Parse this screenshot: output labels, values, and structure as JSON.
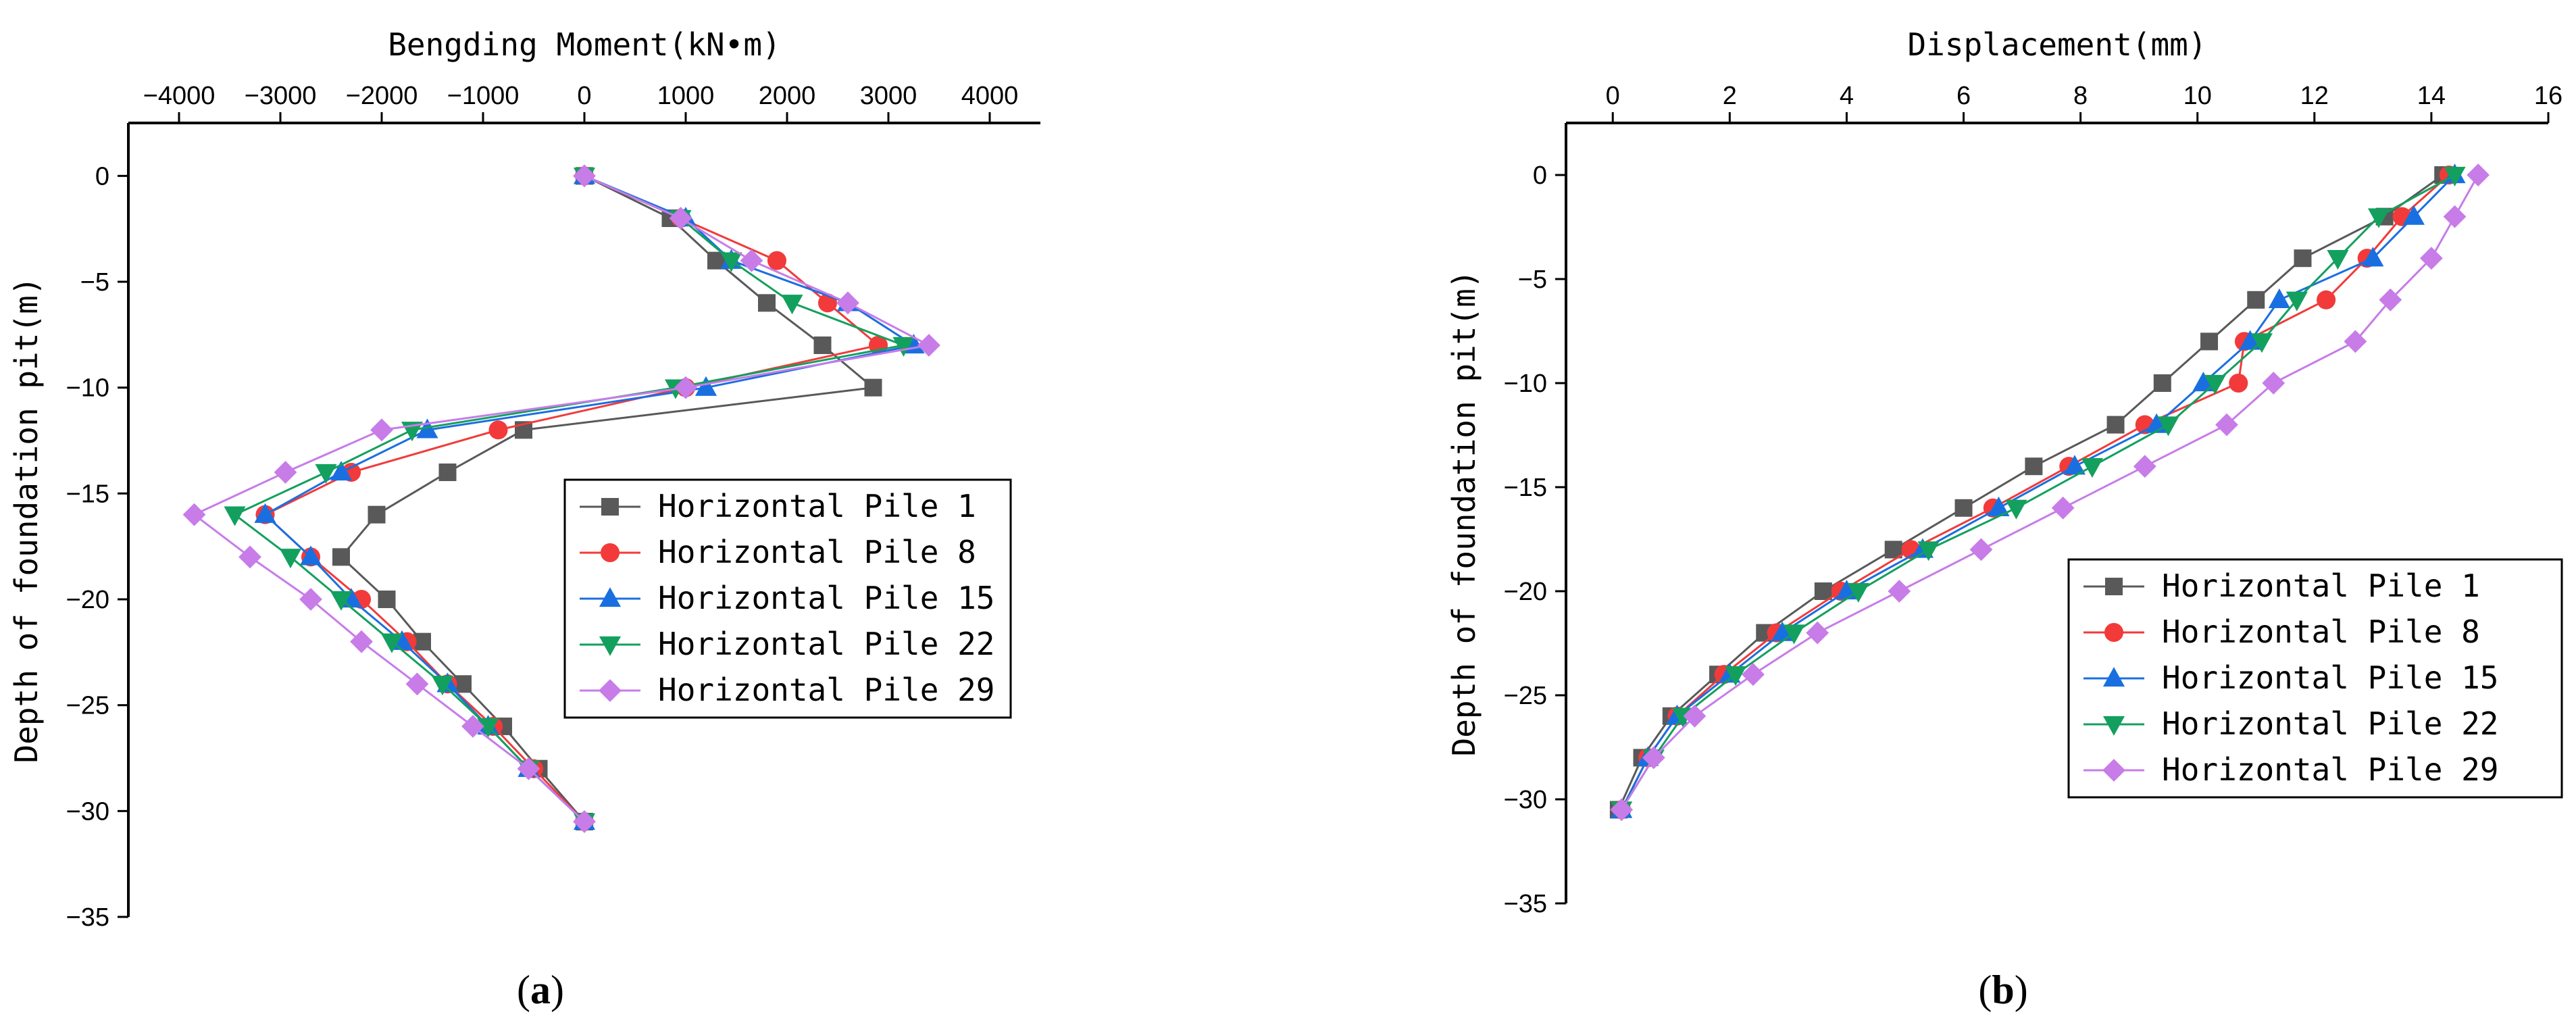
{
  "colors": {
    "series": [
      "#595959",
      "#f23a3a",
      "#1a6fe0",
      "#13a05e",
      "#c77ce8"
    ],
    "axis": "#000000"
  },
  "chart_data": [
    {
      "type": "line",
      "title": "",
      "panel_label": {
        "open": "(",
        "letter": "a",
        "close": ")"
      },
      "xlabel": "Bengding Moment(kN•m)",
      "ylabel": "Depth of foundation pit(m)",
      "xaxis_position": "top",
      "xlim": [
        -4500,
        4500
      ],
      "ylim": [
        -35,
        2.5
      ],
      "xticks": [
        -4000,
        -3000,
        -2000,
        -1000,
        0,
        1000,
        2000,
        3000,
        4000
      ],
      "yticks": [
        0,
        -5,
        -10,
        -15,
        -20,
        -25,
        -30,
        -35
      ],
      "legend_position": "right",
      "grid": false,
      "series": [
        {
          "name": "Horizontal Pile 1",
          "marker": "square",
          "points": [
            [
              0,
              0
            ],
            [
              850,
              -2
            ],
            [
              1300,
              -4
            ],
            [
              1800,
              -6
            ],
            [
              2350,
              -8
            ],
            [
              2850,
              -10
            ],
            [
              -600,
              -12
            ],
            [
              -1350,
              -14
            ],
            [
              -2050,
              -16
            ],
            [
              -2400,
              -18
            ],
            [
              -1950,
              -20
            ],
            [
              -1600,
              -22
            ],
            [
              -1200,
              -24
            ],
            [
              -800,
              -26
            ],
            [
              -450,
              -28
            ],
            [
              0,
              -30.5
            ]
          ]
        },
        {
          "name": "Horizontal Pile 8",
          "marker": "circle",
          "points": [
            [
              0,
              0
            ],
            [
              950,
              -2
            ],
            [
              1900,
              -4
            ],
            [
              2400,
              -6
            ],
            [
              2900,
              -8
            ],
            [
              1000,
              -10
            ],
            [
              -850,
              -12
            ],
            [
              -2300,
              -14
            ],
            [
              -3150,
              -16
            ],
            [
              -2700,
              -18
            ],
            [
              -2200,
              -20
            ],
            [
              -1750,
              -22
            ],
            [
              -1350,
              -24
            ],
            [
              -900,
              -26
            ],
            [
              -500,
              -28
            ],
            [
              0,
              -30.5
            ]
          ]
        },
        {
          "name": "Horizontal Pile 15",
          "marker": "triangle-up",
          "points": [
            [
              0,
              0
            ],
            [
              1000,
              -2
            ],
            [
              1450,
              -4
            ],
            [
              2600,
              -6
            ],
            [
              3250,
              -8
            ],
            [
              1200,
              -10
            ],
            [
              -1550,
              -12
            ],
            [
              -2400,
              -14
            ],
            [
              -3150,
              -16
            ],
            [
              -2700,
              -18
            ],
            [
              -2300,
              -20
            ],
            [
              -1800,
              -22
            ],
            [
              -1350,
              -24
            ],
            [
              -950,
              -26
            ],
            [
              -550,
              -28
            ],
            [
              0,
              -30.5
            ]
          ]
        },
        {
          "name": "Horizontal Pile 22",
          "marker": "triangle-down",
          "points": [
            [
              0,
              0
            ],
            [
              950,
              -2
            ],
            [
              1450,
              -4
            ],
            [
              2050,
              -6
            ],
            [
              3150,
              -8
            ],
            [
              900,
              -10
            ],
            [
              -1700,
              -12
            ],
            [
              -2550,
              -14
            ],
            [
              -3450,
              -16
            ],
            [
              -2900,
              -18
            ],
            [
              -2400,
              -20
            ],
            [
              -1900,
              -22
            ],
            [
              -1400,
              -24
            ],
            [
              -950,
              -26
            ],
            [
              -550,
              -28
            ],
            [
              0,
              -30.5
            ]
          ]
        },
        {
          "name": "Horizontal Pile 29",
          "marker": "diamond",
          "points": [
            [
              0,
              0
            ],
            [
              950,
              -2
            ],
            [
              1650,
              -4
            ],
            [
              2600,
              -6
            ],
            [
              3400,
              -8
            ],
            [
              1000,
              -10
            ],
            [
              -2000,
              -12
            ],
            [
              -2950,
              -14
            ],
            [
              -3850,
              -16
            ],
            [
              -3300,
              -18
            ],
            [
              -2700,
              -20
            ],
            [
              -2200,
              -22
            ],
            [
              -1650,
              -24
            ],
            [
              -1100,
              -26
            ],
            [
              -550,
              -28
            ],
            [
              0,
              -30.5
            ]
          ]
        }
      ]
    },
    {
      "type": "line",
      "title": "",
      "panel_label": {
        "open": "(",
        "letter": "b",
        "close": ")"
      },
      "xlabel": "Displacement(mm)",
      "ylabel": "Depth of foundation pit(m)",
      "xaxis_position": "top",
      "xlim": [
        -0.8,
        16
      ],
      "ylim": [
        -35,
        2.5
      ],
      "xticks": [
        0,
        2,
        4,
        6,
        8,
        10,
        12,
        14,
        16
      ],
      "yticks": [
        0,
        -5,
        -10,
        -15,
        -20,
        -25,
        -30,
        -35
      ],
      "legend_position": "bottom-right",
      "grid": false,
      "series": [
        {
          "name": "Horizontal Pile 1",
          "marker": "square",
          "points": [
            [
              14.2,
              0
            ],
            [
              13.2,
              -2
            ],
            [
              11.8,
              -4
            ],
            [
              11.0,
              -6
            ],
            [
              10.2,
              -8
            ],
            [
              9.4,
              -10
            ],
            [
              8.6,
              -12
            ],
            [
              7.2,
              -14
            ],
            [
              6.0,
              -16
            ],
            [
              4.8,
              -18
            ],
            [
              3.6,
              -20
            ],
            [
              2.6,
              -22
            ],
            [
              1.8,
              -24
            ],
            [
              1.0,
              -26
            ],
            [
              0.5,
              -28
            ],
            [
              0.1,
              -30.5
            ]
          ]
        },
        {
          "name": "Horizontal Pile 8",
          "marker": "circle",
          "points": [
            [
              14.3,
              0
            ],
            [
              13.5,
              -2
            ],
            [
              12.9,
              -4
            ],
            [
              12.2,
              -6
            ],
            [
              10.8,
              -8
            ],
            [
              10.7,
              -10
            ],
            [
              9.1,
              -12
            ],
            [
              7.8,
              -14
            ],
            [
              6.5,
              -16
            ],
            [
              5.1,
              -18
            ],
            [
              3.9,
              -20
            ],
            [
              2.8,
              -22
            ],
            [
              1.9,
              -24
            ],
            [
              1.1,
              -26
            ],
            [
              0.6,
              -28
            ],
            [
              0.15,
              -30.5
            ]
          ]
        },
        {
          "name": "Horizontal Pile 15",
          "marker": "triangle-up",
          "points": [
            [
              14.4,
              0
            ],
            [
              13.7,
              -2
            ],
            [
              13.0,
              -4
            ],
            [
              11.4,
              -6
            ],
            [
              10.9,
              -8
            ],
            [
              10.1,
              -10
            ],
            [
              9.3,
              -12
            ],
            [
              7.9,
              -14
            ],
            [
              6.6,
              -16
            ],
            [
              5.3,
              -18
            ],
            [
              4.0,
              -20
            ],
            [
              2.9,
              -22
            ],
            [
              2.0,
              -24
            ],
            [
              1.1,
              -26
            ],
            [
              0.6,
              -28
            ],
            [
              0.15,
              -30.5
            ]
          ]
        },
        {
          "name": "Horizontal Pile 22",
          "marker": "triangle-down",
          "points": [
            [
              14.4,
              0
            ],
            [
              13.1,
              -2
            ],
            [
              12.4,
              -4
            ],
            [
              11.7,
              -6
            ],
            [
              11.1,
              -8
            ],
            [
              10.3,
              -10
            ],
            [
              9.5,
              -12
            ],
            [
              8.2,
              -14
            ],
            [
              6.9,
              -16
            ],
            [
              5.4,
              -18
            ],
            [
              4.2,
              -20
            ],
            [
              3.1,
              -22
            ],
            [
              2.1,
              -24
            ],
            [
              1.2,
              -26
            ],
            [
              0.7,
              -28
            ],
            [
              0.15,
              -30.5
            ]
          ]
        },
        {
          "name": "Horizontal Pile 29",
          "marker": "diamond",
          "points": [
            [
              14.8,
              0
            ],
            [
              14.4,
              -2
            ],
            [
              14.0,
              -4
            ],
            [
              13.3,
              -6
            ],
            [
              12.7,
              -8
            ],
            [
              11.3,
              -10
            ],
            [
              10.5,
              -12
            ],
            [
              9.1,
              -14
            ],
            [
              7.7,
              -16
            ],
            [
              6.3,
              -18
            ],
            [
              4.9,
              -20
            ],
            [
              3.5,
              -22
            ],
            [
              2.4,
              -24
            ],
            [
              1.4,
              -26
            ],
            [
              0.7,
              -28
            ],
            [
              0.15,
              -30.5
            ]
          ]
        }
      ]
    }
  ]
}
